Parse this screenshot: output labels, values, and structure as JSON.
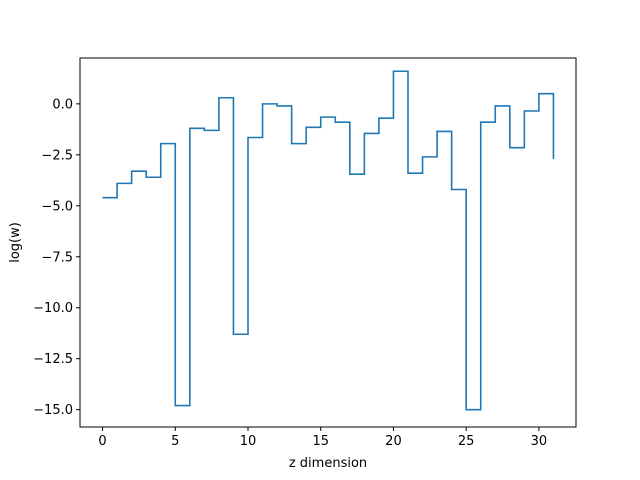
{
  "chart_data": {
    "type": "line",
    "step": "post",
    "xlabel": "z dimension",
    "ylabel": "log(w)",
    "xlim": [
      -1.55,
      32.55
    ],
    "ylim": [
      -15.85,
      2.25
    ],
    "xticks": [
      0,
      5,
      10,
      15,
      20,
      25,
      30
    ],
    "xtick_labels": [
      "0",
      "5",
      "10",
      "15",
      "20",
      "25",
      "30"
    ],
    "yticks": [
      0.0,
      -2.5,
      -5.0,
      -7.5,
      -10.0,
      -12.5,
      -15.0
    ],
    "ytick_labels": [
      "0.0",
      "−2.5",
      "−5.0",
      "−7.5",
      "−10.0",
      "−12.5",
      "−15.0"
    ],
    "series": [
      {
        "color": "#1f77b4",
        "x": [
          0,
          1,
          2,
          3,
          4,
          5,
          6,
          7,
          8,
          9,
          10,
          11,
          12,
          13,
          14,
          15,
          16,
          17,
          18,
          19,
          20,
          21,
          22,
          23,
          24,
          25,
          26,
          27,
          28,
          29,
          30,
          31
        ],
        "values": [
          -4.6,
          -3.9,
          -3.3,
          -3.6,
          -1.95,
          -14.8,
          -1.2,
          -1.3,
          0.3,
          -11.3,
          -1.65,
          0.0,
          -0.1,
          -1.95,
          -1.15,
          -0.65,
          -0.9,
          -3.45,
          -1.45,
          -0.7,
          1.6,
          -3.4,
          -2.6,
          -1.35,
          -4.2,
          -15.0,
          -0.9,
          -0.1,
          -2.15,
          -0.35,
          0.5,
          -2.7
        ]
      }
    ]
  }
}
